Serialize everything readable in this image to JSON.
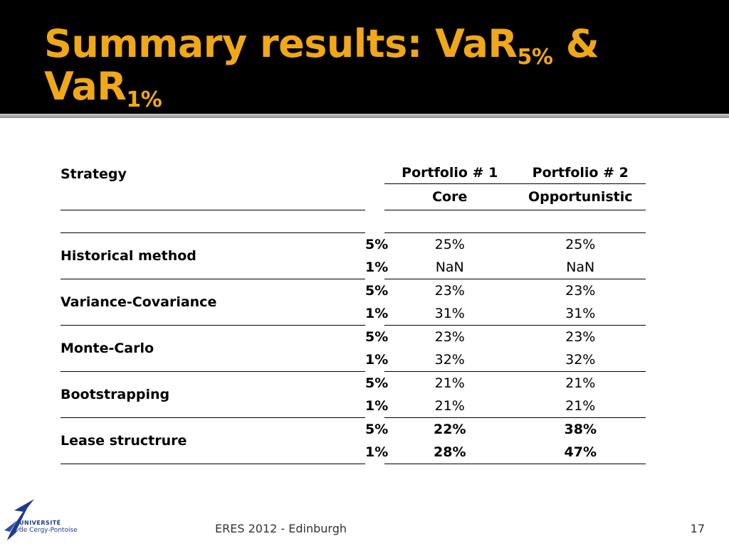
{
  "slide": {
    "title_main": "Summary results: VaR",
    "title_sub1": "5%",
    "title_amp": " & ",
    "title_var2": "VaR",
    "title_sub2": "1%"
  },
  "table": {
    "strategy_label": "Strategy",
    "columns": [
      {
        "name": "Portfolio # 1",
        "type": "Core"
      },
      {
        "name": "Portfolio # 2",
        "type": "Opportunistic"
      }
    ],
    "rows": [
      {
        "method": "Historical method",
        "levels": [
          {
            "level": "5%",
            "p1": "25%",
            "p2": "25%"
          },
          {
            "level": "1%",
            "p1": "NaN",
            "p2": "NaN"
          }
        ]
      },
      {
        "method": "Variance-Covariance",
        "levels": [
          {
            "level": "5%",
            "p1": "23%",
            "p2": "23%"
          },
          {
            "level": "1%",
            "p1": "31%",
            "p2": "31%"
          }
        ]
      },
      {
        "method": "Monte-Carlo",
        "levels": [
          {
            "level": "5%",
            "p1": "23%",
            "p2": "23%"
          },
          {
            "level": "1%",
            "p1": "32%",
            "p2": "32%"
          }
        ]
      },
      {
        "method": "Bootstrapping",
        "levels": [
          {
            "level": "5%",
            "p1": "21%",
            "p2": "21%"
          },
          {
            "level": "1%",
            "p1": "21%",
            "p2": "21%"
          }
        ]
      },
      {
        "method": "Lease structrure",
        "levels": [
          {
            "level": "5%",
            "p1": "22%",
            "p2": "38%"
          },
          {
            "level": "1%",
            "p1": "28%",
            "p2": "47%"
          }
        ]
      }
    ]
  },
  "footer": {
    "logo_line1": "UNIVERSITÉ",
    "logo_line2": "de Cergy-Pontoise",
    "event": "ERES 2012 - Edinburgh",
    "page": "17"
  },
  "colors": {
    "header_bg": "#000000",
    "title": "#f0a818",
    "logo_blue": "#1e3a8a"
  },
  "icons": {
    "logo": "university-logo-icon"
  }
}
